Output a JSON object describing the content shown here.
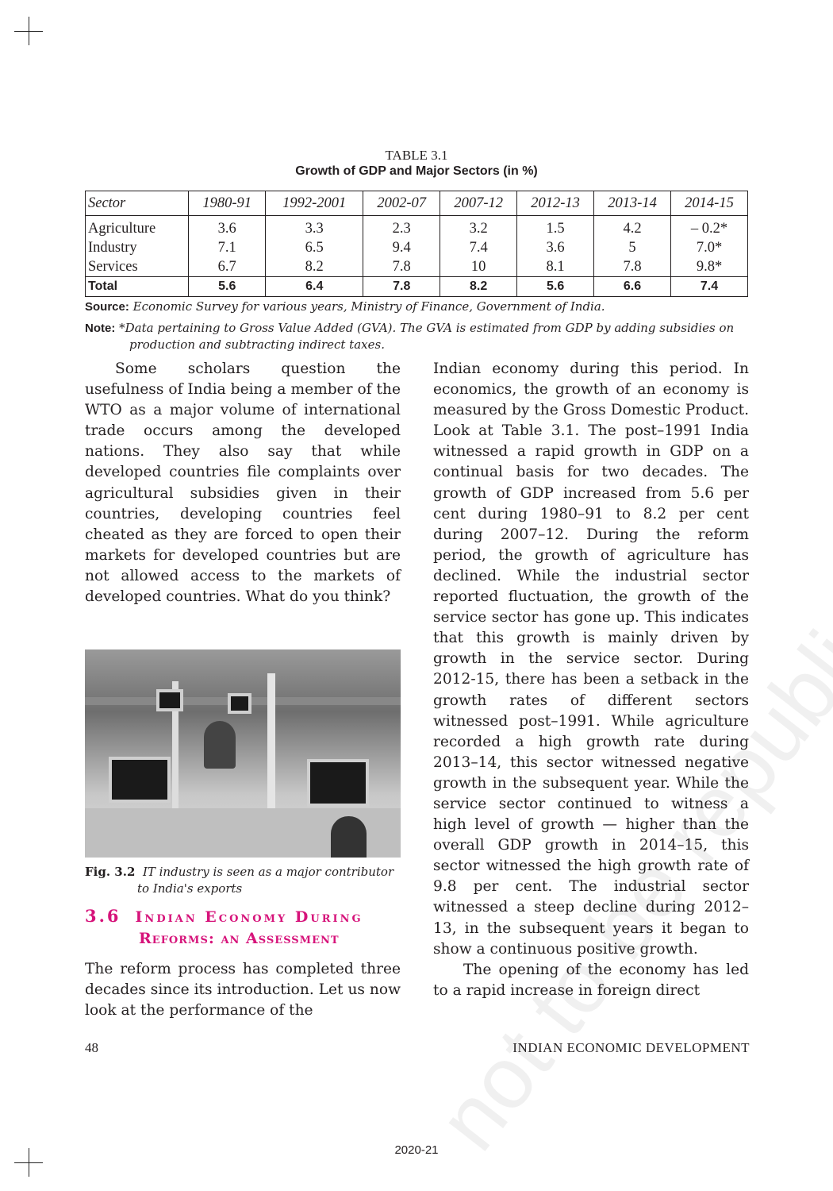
{
  "table": {
    "number": "TABLE 3.1",
    "title": "Growth of GDP and Major Sectors (in %)",
    "headers": [
      "Sector",
      "1980-91",
      "1992-2001",
      "2002-07",
      "2007-12",
      "2012-13",
      "2013-14",
      "2014-15"
    ],
    "rows": [
      [
        "Agriculture",
        "3.6",
        "3.3",
        "2.3",
        "3.2",
        "1.5",
        "4.2",
        "– 0.2*"
      ],
      [
        "Industry",
        "7.1",
        "6.5",
        "9.4",
        "7.4",
        "3.6",
        "5",
        "7.0*"
      ],
      [
        "Services",
        "6.7",
        "8.2",
        "7.8",
        "10",
        "8.1",
        "7.8",
        "9.8*"
      ]
    ],
    "total": [
      "Total",
      "5.6",
      "6.4",
      "7.8",
      "8.2",
      "5.6",
      "6.6",
      "7.4"
    ],
    "source_label": "Source:",
    "source_text": "Economic Survey for various years, Ministry of Finance, Government of India.",
    "note_label": "Note:",
    "note_text": "*Data pertaining to Gross Value Added (GVA). The GVA is estimated from GDP by adding subsidies on production and subtracting indirect taxes."
  },
  "left_para1": "Some scholars question the usefulness of India being a member of the WTO as a major volume of international trade occurs among the developed nations. They also say that while developed countries file complaints over agricultural subsidies given in their countries, developing countries feel cheated as they are forced to open their markets for developed countries but are not allowed access to the markets of developed countries. What do you think?",
  "figure": {
    "label": "Fig. 3.2",
    "caption_line1": "IT industry is seen as a major contributor",
    "caption_line2": "to India's exports"
  },
  "heading": {
    "number": "3.6",
    "line1": "Indian Economy During",
    "line2": "Reforms: an Assessment"
  },
  "left_para2": "The reform process has completed three decades since its introduction. Let us now look at the performance of the",
  "right_para1": "Indian economy during this period. In economics, the growth of an economy is measured by the Gross Domestic Product. Look at Table 3.1. The post–1991 India witnessed a rapid growth in GDP on a continual basis for two decades. The growth of GDP increased from 5.6 per cent during 1980–91 to 8.2 per cent during 2007–12. During the reform period, the growth of agriculture has declined. While the industrial sector reported fluctuation, the growth of the service sector has gone up. This indicates that this growth is mainly driven by growth in the service sector. During 2012-15, there has been a setback in the growth rates of different sectors witnessed post–1991. While agriculture recorded a high growth rate during 2013–14, this sector witnessed negative growth in the subsequent year. While the service sector continued to witness a high level of growth — higher than the overall GDP growth in 2014–15, this sector witnessed the high growth rate of 9.8 per cent. The industrial sector witnessed a steep decline during 2012–13, in the subsequent years it began to show a continuous positive growth.",
  "right_para2": "The opening of the economy has led to a rapid increase in foreign direct",
  "footer": {
    "page_number": "48",
    "running_title": "INDIAN ECONOMIC DEVELOPMENT",
    "year": "2020-21"
  },
  "watermark": "not to be republished © NCERT",
  "colors": {
    "heading": "#d6137a",
    "text": "#231f20"
  }
}
